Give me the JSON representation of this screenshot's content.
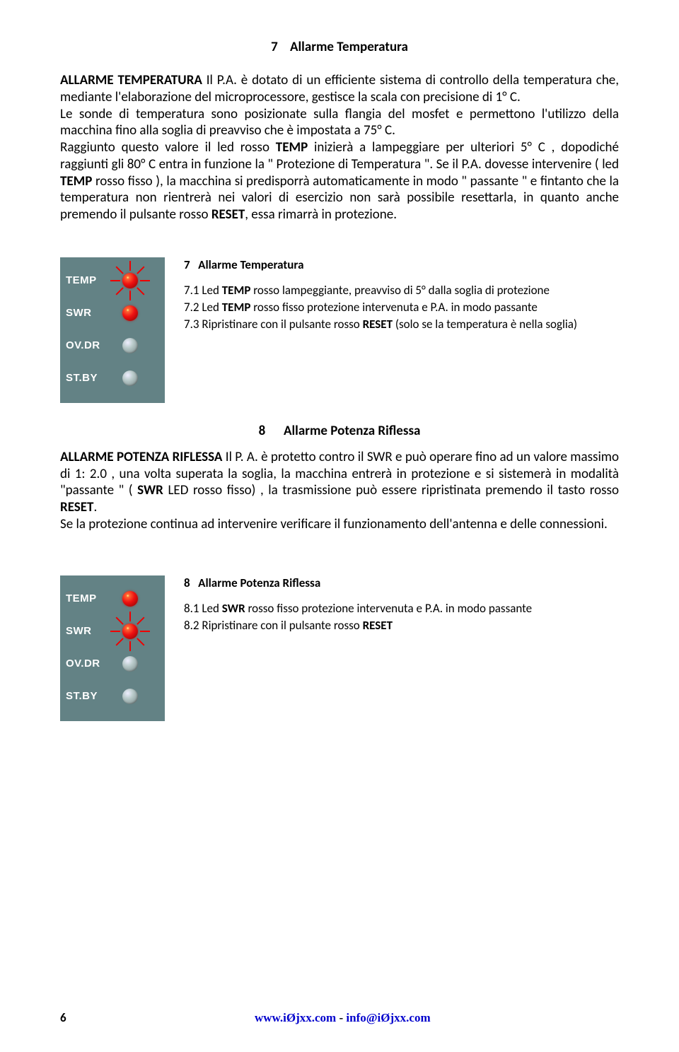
{
  "section7": {
    "number": "7",
    "title": "Allarme Temperatura",
    "para1_a": "ALLARME TEMPERATURA",
    "para1_b": " Il P.A. è dotato di un efficiente sistema di controllo della temperatura che, mediante l'elaborazione del microprocessore, gestisce la scala con precisione di 1° C.",
    "para2": "Le sonde di temperatura sono posizionate sulla flangia del mosfet e permettono l'utilizzo della macchina fino alla soglia di preavviso che è impostata a 75° C.",
    "para3_a": "Raggiunto questo valore il led rosso ",
    "para3_b": "TEMP",
    "para3_c": " inizierà a lampeggiare per ulteriori 5° C , dopodiché raggiunti gli 80° C entra in funzione la \" Protezione di Temperatura \". Se il P.A. dovesse intervenire ( led ",
    "para3_d": "TEMP",
    "para3_e": " rosso fisso ), la macchina si predisporrà automaticamente in modo \" passante \" e fintanto che la temperatura non rientrerà nei valori di esercizio non sarà possibile resettarla, in quanto anche premendo il pulsante rosso ",
    "para3_f": "RESET",
    "para3_g": ", essa rimarrà in protezione."
  },
  "panel1": {
    "rows": [
      {
        "label": "TEMP",
        "state": "red",
        "spark": true
      },
      {
        "label": "SWR",
        "state": "red",
        "spark": false
      },
      {
        "label": "OV.DR",
        "state": "off",
        "spark": false
      },
      {
        "label": "ST.BY",
        "state": "off",
        "spark": false
      }
    ],
    "title_num": "7",
    "title_txt": "Allarme Temperatura",
    "i1_a": "7.1   Led ",
    "i1_b": "TEMP",
    "i1_c": " rosso lampeggiante, preavviso di 5° dalla soglia di protezione",
    "i2_a": "7.2   Led ",
    "i2_b": "TEMP",
    "i2_c": " rosso fisso protezione intervenuta e P.A. in modo passante",
    "i3_a": "7.3  Ripristinare con il pulsante rosso ",
    "i3_b": "RESET",
    "i3_c": " (solo se la temperatura è nella soglia)"
  },
  "section8": {
    "number": "8",
    "title": "Allarme Potenza Riflessa",
    "p1_a": "ALLARME POTENZA RIFLESSA",
    "p1_b": " Il P. A.  è protetto contro il SWR e può operare fino ad un valore massimo di 1: 2.0 , una volta superata la soglia, la macchina entrerà in protezione e si sistemerà in modalità \"passante \" ( ",
    "p1_c": "SWR",
    "p1_d": " LED rosso fisso) , la trasmissione può essere ripristinata premendo il tasto rosso ",
    "p1_e": "RESET",
    "p1_f": ".",
    "p2": "Se la protezione continua ad intervenire verificare il funzionamento dell'antenna e delle connessioni."
  },
  "panel2": {
    "rows": [
      {
        "label": "TEMP",
        "state": "red",
        "spark": false
      },
      {
        "label": "SWR",
        "state": "red",
        "spark": true
      },
      {
        "label": "OV.DR",
        "state": "off",
        "spark": false
      },
      {
        "label": "ST.BY",
        "state": "off",
        "spark": false
      }
    ],
    "title_num": "8",
    "title_txt": "Allarme Potenza Riflessa",
    "i1_a": "8.1   Led ",
    "i1_b": "SWR",
    "i1_c": " rosso fisso protezione intervenuta e P.A. in modo passante",
    "i2_a": "8.2  Ripristinare con il pulsante rosso ",
    "i2_b": "RESET"
  },
  "footer": {
    "page": "6",
    "site": "www.iØjxx.com",
    "sep": " - ",
    "mail": "info@iØjxx.com"
  }
}
